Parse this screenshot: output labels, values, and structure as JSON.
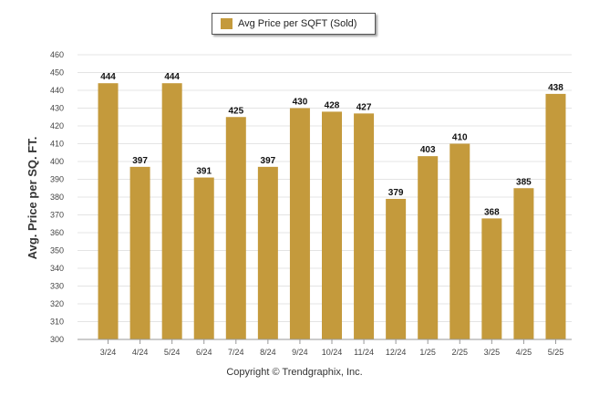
{
  "colors": {
    "bar": "#C49A3C",
    "grid": "#e4e4e4",
    "axis": "#999999"
  },
  "legend": {
    "label": "Avg Price per SQFT (Sold)"
  },
  "footer": {
    "text": "Copyright © Trendgraphix, Inc."
  },
  "chart_data": {
    "type": "bar",
    "ylabel": "Avg. Price per SQ. FT.",
    "xlabel": "",
    "ylim": [
      300,
      460
    ],
    "yticks": [
      300,
      310,
      320,
      330,
      340,
      350,
      360,
      370,
      380,
      390,
      400,
      410,
      420,
      430,
      440,
      450,
      460
    ],
    "grid": true,
    "legend_position": "top-center",
    "categories": [
      "3/24",
      "4/24",
      "5/24",
      "6/24",
      "7/24",
      "8/24",
      "9/24",
      "10/24",
      "11/24",
      "12/24",
      "1/25",
      "2/25",
      "3/25",
      "4/25",
      "5/25"
    ],
    "series": [
      {
        "name": "Avg Price per SQFT (Sold)",
        "values": [
          444,
          397,
          444,
          391,
          425,
          397,
          430,
          428,
          427,
          379,
          403,
          410,
          368,
          385,
          438
        ]
      }
    ]
  }
}
